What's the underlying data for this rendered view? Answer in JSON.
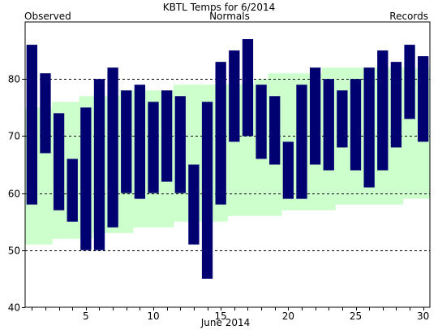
{
  "chart_data": {
    "type": "bar",
    "title": "KBTL Temps for 6/2014",
    "xlabel": "June 2014",
    "legend": {
      "observed": "Observed",
      "normals": "Normals",
      "records": "Records"
    },
    "colors": {
      "observed": "#000070",
      "normals": "#ccffcc",
      "legend_observed": "#000070",
      "legend_normals": "#006600",
      "legend_records": "#c28fd6",
      "grid": "#000000"
    },
    "ylim": [
      40,
      90
    ],
    "yticks": [
      40,
      50,
      60,
      70,
      80
    ],
    "xticks": [
      5,
      10,
      15,
      20,
      25,
      30
    ],
    "days": [
      1,
      2,
      3,
      4,
      5,
      6,
      7,
      8,
      9,
      10,
      11,
      12,
      13,
      14,
      15,
      16,
      17,
      18,
      19,
      20,
      21,
      22,
      23,
      24,
      25,
      26,
      27,
      28,
      29,
      30
    ],
    "series": [
      {
        "name": "Observed",
        "high": [
          86,
          81,
          74,
          66,
          75,
          80,
          82,
          78,
          79,
          76,
          78,
          77,
          65,
          76,
          83,
          85,
          87,
          79,
          77,
          69,
          79,
          82,
          80,
          78,
          80,
          82,
          85,
          83,
          86,
          84
        ],
        "low": [
          58,
          67,
          57,
          55,
          50,
          50,
          54,
          60,
          59,
          60,
          62,
          60,
          51,
          45,
          58,
          69,
          70,
          66,
          65,
          59,
          59,
          65,
          64,
          68,
          64,
          61,
          64,
          68,
          73,
          69
        ]
      },
      {
        "name": "Normals",
        "high": [
          75,
          75,
          76,
          76,
          77,
          77,
          77,
          78,
          78,
          78,
          78,
          79,
          79,
          79,
          79,
          79,
          79,
          80,
          81,
          81,
          81,
          81,
          82,
          82,
          82,
          82,
          82,
          82,
          82,
          82
        ],
        "low": [
          51,
          51,
          52,
          52,
          52,
          53,
          53,
          53,
          54,
          54,
          54,
          55,
          55,
          55,
          55,
          56,
          56,
          56,
          56,
          57,
          57,
          57,
          57,
          58,
          58,
          58,
          58,
          58,
          59,
          59
        ]
      }
    ]
  }
}
